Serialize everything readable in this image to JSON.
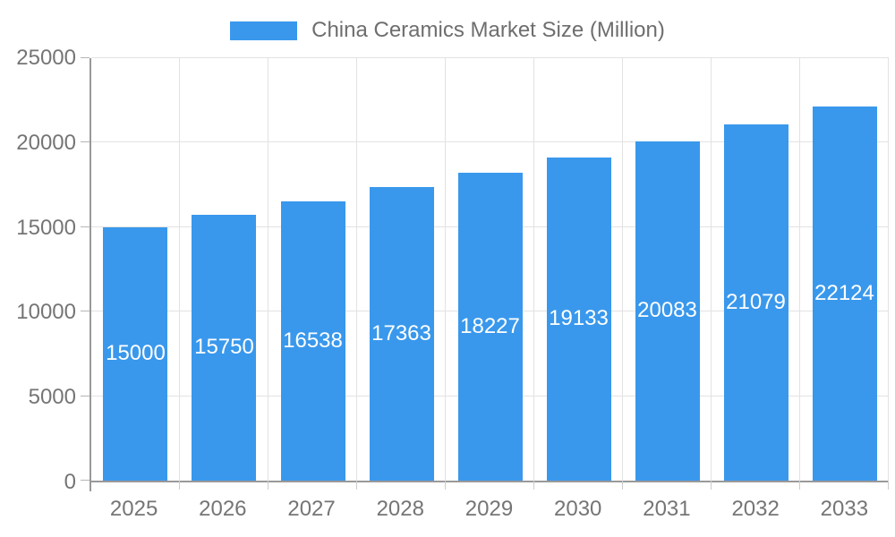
{
  "chart_data": {
    "type": "bar",
    "title": "China Ceramics Market Size (Million)",
    "categories": [
      "2025",
      "2026",
      "2027",
      "2028",
      "2029",
      "2030",
      "2031",
      "2032",
      "2033"
    ],
    "values": [
      15000,
      15750,
      16538,
      17363,
      18227,
      19133,
      20083,
      21079,
      22124
    ],
    "xlabel": "",
    "ylabel": "",
    "ylim": [
      0,
      25000
    ],
    "ytick_step": 5000,
    "ytick_labels": [
      "0",
      "5000",
      "10000",
      "15000",
      "20000",
      "25000"
    ],
    "grid": "on",
    "legend_position": "top-center",
    "bar_color": "#3998ec",
    "bar_label_color": "#ffffff",
    "axis_color": "#999999",
    "gridline_color": "#e2e2e2",
    "text_color": "#757575"
  }
}
